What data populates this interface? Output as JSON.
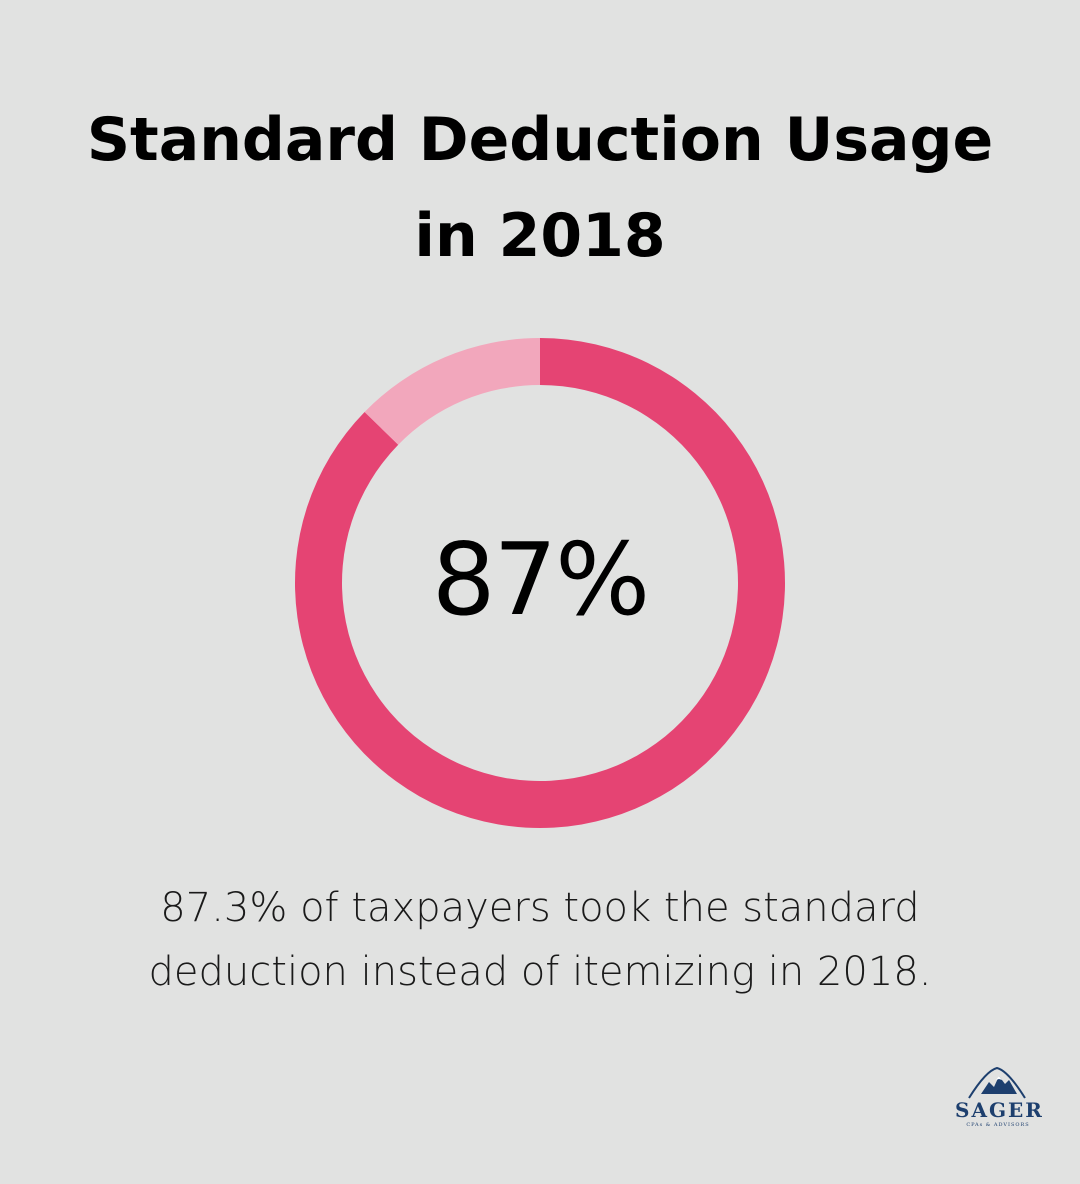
{
  "title_lines": [
    "Standard Deduction Usage",
    "in 2018"
  ],
  "center_value": "87%",
  "caption_lines": [
    "87.3% of taxpayers took the standard",
    "deduction instead of itemizing in 2018."
  ],
  "logo": {
    "name": "SAGER",
    "tagline": "CPAs & ADVISORS",
    "icon": "mountain-icon"
  },
  "colors": {
    "background": "#e1e2e1",
    "primary_segment": "#e54473",
    "secondary_segment": "#f2a7bc",
    "brand": "#1d3f6e"
  },
  "chart_data": {
    "type": "pie",
    "title": "Standard Deduction Usage in 2018",
    "slices": [
      {
        "name": "",
        "value": 87.3,
        "color": "#e54473"
      },
      {
        "name": "",
        "value": 12.7,
        "color": "#f2a7bc"
      }
    ],
    "center_label": "87%",
    "donut": true
  }
}
